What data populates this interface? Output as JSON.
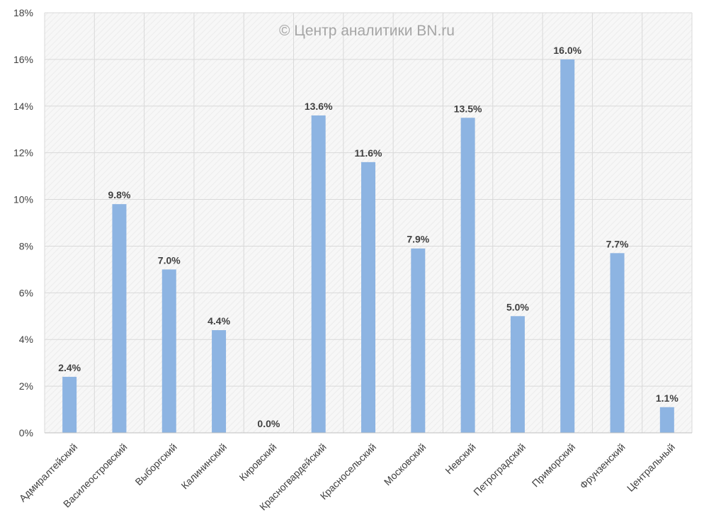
{
  "watermark": "© Центр аналитики BN.ru",
  "chart_data": {
    "type": "bar",
    "title": "",
    "xlabel": "",
    "ylabel": "",
    "ylim": [
      0,
      18
    ],
    "y_ticks": [
      0,
      2,
      4,
      6,
      8,
      10,
      12,
      14,
      16,
      18
    ],
    "y_tick_labels": [
      "0%",
      "2%",
      "4%",
      "6%",
      "8%",
      "10%",
      "12%",
      "14%",
      "16%",
      "18%"
    ],
    "grid": true,
    "categories": [
      "Адмиралтейский",
      "Василеостровский",
      "Выборгский",
      "Калининский",
      "Кировский",
      "Красногвардейский",
      "Красносельский",
      "Московский",
      "Невский",
      "Петроградский",
      "Приморский",
      "Фрунзенский",
      "Центральный"
    ],
    "values": [
      2.4,
      9.8,
      7.0,
      4.4,
      0.0,
      13.6,
      11.6,
      7.9,
      13.5,
      5.0,
      16.0,
      7.7,
      1.1
    ],
    "data_labels": [
      "2.4%",
      "9.8%",
      "7.0%",
      "4.4%",
      "0.0%",
      "13.6%",
      "11.6%",
      "7.9%",
      "13.5%",
      "5.0%",
      "16.0%",
      "7.7%",
      "1.1%"
    ],
    "bar_color": "#8db4e2",
    "grid_color": "#d9d9d9",
    "text_color": "#404040",
    "watermark_color": "#a6a6a6"
  }
}
